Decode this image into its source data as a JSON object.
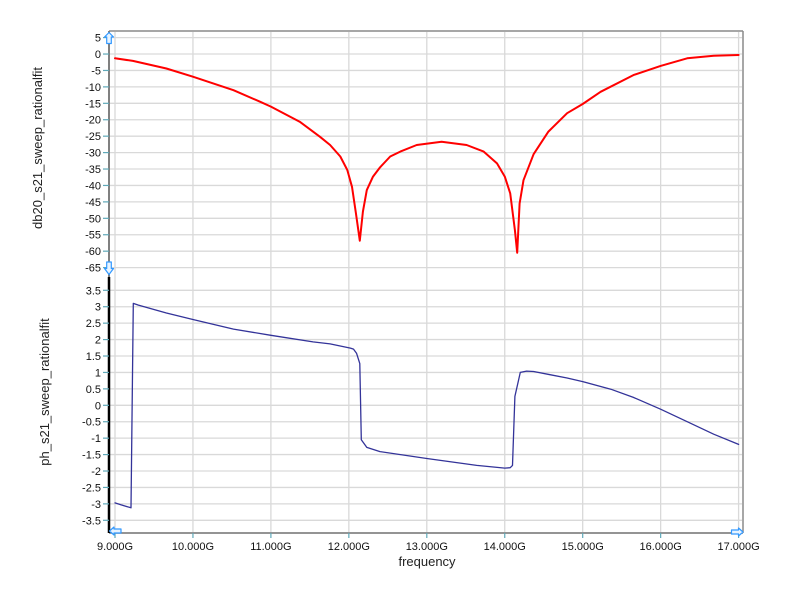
{
  "style": {
    "background": "#ffffff",
    "grid": "#d9d9d9",
    "tick": "#5fa8b8",
    "frame": "#808080",
    "active_axis": "#000000",
    "handle_stroke": "#3399ff",
    "handle_fill": "#e8f4ff"
  },
  "chart_data": [
    {
      "type": "line",
      "title": "",
      "xlabel": "frequency",
      "ylabel": "db20_s21_sweep_rationalfit",
      "xlim": [
        9,
        17
      ],
      "x_tick_values": [
        9,
        10,
        11,
        12,
        13,
        14,
        15,
        16,
        17
      ],
      "x_ticks": [
        "9.000G",
        "10.000G",
        "11.000G",
        "12.000G",
        "13.000G",
        "14.000G",
        "15.000G",
        "16.000G",
        "17.000G"
      ],
      "ylim": [
        -65,
        5
      ],
      "y_tick_values": [
        5,
        0,
        -5,
        -10,
        -15,
        -20,
        -25,
        -30,
        -35,
        -40,
        -45,
        -50,
        -55,
        -60,
        -65
      ],
      "y_ticks": [
        "5",
        "0",
        "-5",
        "-10",
        "-15",
        "-20",
        "-25",
        "-30",
        "-35",
        "-40",
        "-45",
        "-50",
        "-55",
        "-60",
        "-65"
      ],
      "grid": true,
      "legend": "none",
      "series": [
        {
          "name": "db20_s21_sweep_rationalfit",
          "color": "#ff0000",
          "x": [
            9.0,
            9.23,
            9.66,
            10.0,
            10.52,
            10.86,
            11.0,
            11.37,
            11.63,
            11.76,
            11.89,
            11.98,
            12.04,
            12.09,
            12.14,
            12.18,
            12.23,
            12.31,
            12.4,
            12.53,
            12.66,
            12.87,
            13.19,
            13.51,
            13.73,
            13.9,
            14.0,
            14.07,
            14.13,
            14.16,
            14.19,
            14.24,
            14.37,
            14.56,
            14.8,
            15.0,
            15.23,
            15.65,
            16.0,
            16.34,
            16.68,
            17.0
          ],
          "y": [
            -1.3,
            -2.1,
            -4.4,
            -6.9,
            -11.0,
            -14.5,
            -16.0,
            -20.6,
            -25.2,
            -27.7,
            -31.2,
            -35.3,
            -40.4,
            -48.4,
            -56.8,
            -48.0,
            -41.4,
            -37.3,
            -34.5,
            -31.2,
            -29.7,
            -27.7,
            -26.7,
            -27.7,
            -29.7,
            -33.3,
            -37.3,
            -42.4,
            -53.6,
            -60.5,
            -45.5,
            -38.4,
            -30.5,
            -23.6,
            -18.0,
            -15.2,
            -11.5,
            -6.4,
            -3.6,
            -1.3,
            -0.5,
            -0.3
          ]
        }
      ]
    },
    {
      "type": "line",
      "title": "",
      "xlabel": "frequency",
      "ylabel": "ph_s21_sweep_rationalfit",
      "xlim": [
        9,
        17
      ],
      "x_tick_values": [
        9,
        10,
        11,
        12,
        13,
        14,
        15,
        16,
        17
      ],
      "x_ticks": [
        "9.000G",
        "10.000G",
        "11.000G",
        "12.000G",
        "13.000G",
        "14.000G",
        "15.000G",
        "16.000G",
        "17.000G"
      ],
      "ylim": [
        -3.5,
        3.5
      ],
      "y_tick_values": [
        3.5,
        3,
        2.5,
        2,
        1.5,
        1,
        0.5,
        0,
        -0.5,
        -1,
        -1.5,
        -2,
        -2.5,
        -3,
        -3.5
      ],
      "y_ticks": [
        "3.5",
        "3",
        "2.5",
        "2",
        "1.5",
        "1",
        "0.5",
        "0",
        "-0.5",
        "-1",
        "-1.5",
        "-2",
        "-2.5",
        "-3",
        "-3.5"
      ],
      "grid": true,
      "legend": "none",
      "series": [
        {
          "name": "ph_s21_sweep_rationalfit",
          "color": "#333399",
          "x": [
            9.0,
            9.08,
            9.205,
            9.235,
            9.3,
            9.66,
            10.0,
            10.52,
            11.0,
            11.54,
            11.76,
            12.02,
            12.06,
            12.1,
            12.14,
            12.16,
            12.23,
            12.4,
            13.0,
            13.64,
            14.0,
            14.07,
            14.1,
            14.13,
            14.2,
            14.28,
            14.37,
            14.58,
            14.8,
            15.0,
            15.36,
            15.65,
            16.0,
            16.34,
            16.68,
            17.0
          ],
          "y": [
            -2.97,
            -3.03,
            -3.12,
            3.1,
            3.05,
            2.81,
            2.61,
            2.32,
            2.13,
            1.93,
            1.87,
            1.74,
            1.71,
            1.58,
            1.27,
            -1.05,
            -1.28,
            -1.41,
            -1.62,
            -1.83,
            -1.91,
            -1.9,
            -1.83,
            0.27,
            1.0,
            1.04,
            1.03,
            0.93,
            0.83,
            0.72,
            0.49,
            0.24,
            -0.12,
            -0.5,
            -0.88,
            -1.19
          ]
        }
      ]
    }
  ]
}
